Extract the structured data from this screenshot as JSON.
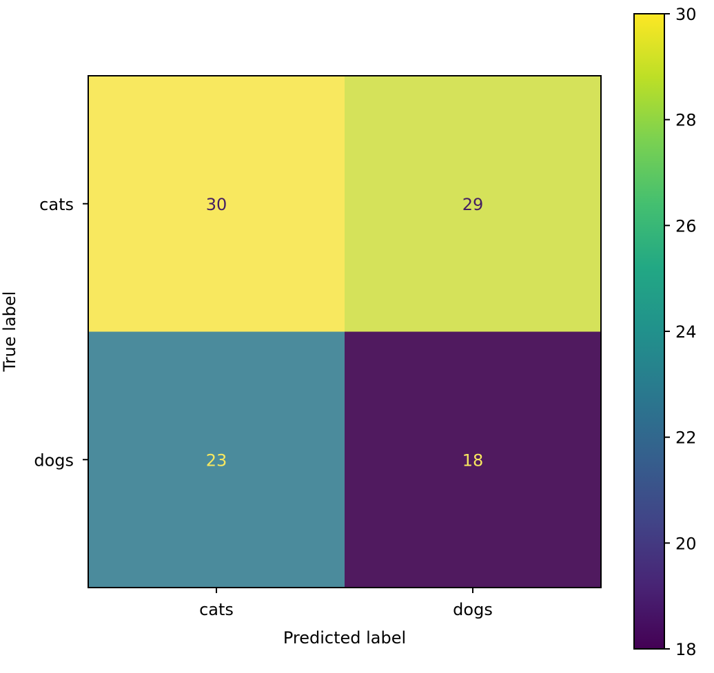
{
  "chart_data": {
    "type": "heatmap",
    "title": "",
    "xlabel": "Predicted label",
    "ylabel": "True label",
    "x_categories": [
      "cats",
      "dogs"
    ],
    "y_categories": [
      "cats",
      "dogs"
    ],
    "matrix": [
      [
        30,
        29
      ],
      [
        23,
        18
      ]
    ],
    "colormap": "viridis",
    "colorbar": {
      "min": 18,
      "max": 30,
      "ticks": [
        "18",
        "20",
        "22",
        "24",
        "26",
        "28",
        "30"
      ]
    },
    "colors": {
      "cell_cats_cats": "#f8e85f",
      "cell_cats_dogs": "#d5e25a",
      "cell_dogs_cats": "#4b8b9c",
      "cell_dogs_dogs": "#501a5f",
      "text_on_light": "#451f63",
      "text_on_dark": "#f8e85f"
    }
  }
}
